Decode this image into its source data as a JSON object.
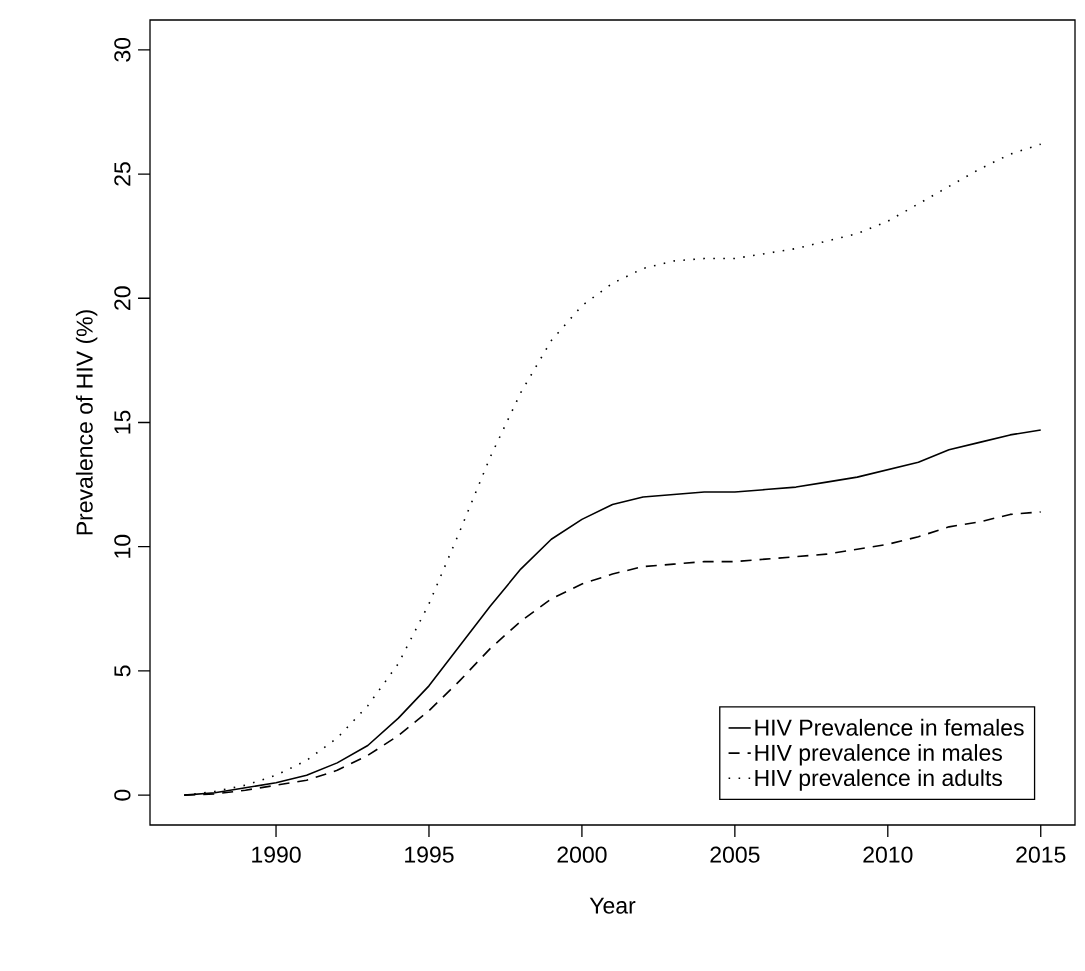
{
  "chart_data": {
    "type": "line",
    "xlabel": "Year",
    "ylabel": "Prevalence of HIV (%)",
    "x": [
      1987,
      1988,
      1989,
      1990,
      1991,
      1992,
      1993,
      1994,
      1995,
      1996,
      1997,
      1998,
      1999,
      2000,
      2001,
      2002,
      2003,
      2004,
      2005,
      2006,
      2007,
      2008,
      2009,
      2010,
      2011,
      2012,
      2013,
      2014,
      2015
    ],
    "series": [
      {
        "name": "HIV Prevalence in females",
        "color": "#000000",
        "line_style": "solid",
        "values": [
          0,
          0.1,
          0.3,
          0.5,
          0.8,
          1.3,
          2.0,
          3.1,
          4.4,
          6.0,
          7.6,
          9.1,
          10.3,
          11.1,
          11.7,
          12.0,
          12.1,
          12.2,
          12.2,
          12.3,
          12.4,
          12.6,
          12.8,
          13.1,
          13.4,
          13.9,
          14.2,
          14.5,
          14.7
        ]
      },
      {
        "name": "HIV prevalence in males",
        "color": "#000000",
        "line_style": "dashed",
        "values": [
          0,
          0.05,
          0.2,
          0.4,
          0.6,
          1.0,
          1.6,
          2.4,
          3.4,
          4.6,
          5.9,
          7.0,
          7.9,
          8.5,
          8.9,
          9.2,
          9.3,
          9.4,
          9.4,
          9.5,
          9.6,
          9.7,
          9.9,
          10.1,
          10.4,
          10.8,
          11.0,
          11.3,
          11.4
        ]
      },
      {
        "name": "HIV prevalence in adults",
        "color": "#000000",
        "line_style": "dotted",
        "values": [
          0,
          0.15,
          0.4,
          0.8,
          1.4,
          2.3,
          3.6,
          5.3,
          7.7,
          10.6,
          13.6,
          16.2,
          18.3,
          19.7,
          20.6,
          21.2,
          21.5,
          21.6,
          21.6,
          21.8,
          22.0,
          22.3,
          22.6,
          23.1,
          23.8,
          24.5,
          25.2,
          25.8,
          26.2
        ]
      }
    ],
    "xlim": [
      1985.88,
      2016.12
    ],
    "ylim": [
      -1.2,
      31.2
    ],
    "xticks": [
      1990,
      1995,
      2000,
      2005,
      2010,
      2015
    ],
    "yticks": [
      0,
      5,
      10,
      15,
      20,
      25,
      30
    ],
    "grid": false,
    "legend": "bottom right",
    "marker": "none"
  }
}
